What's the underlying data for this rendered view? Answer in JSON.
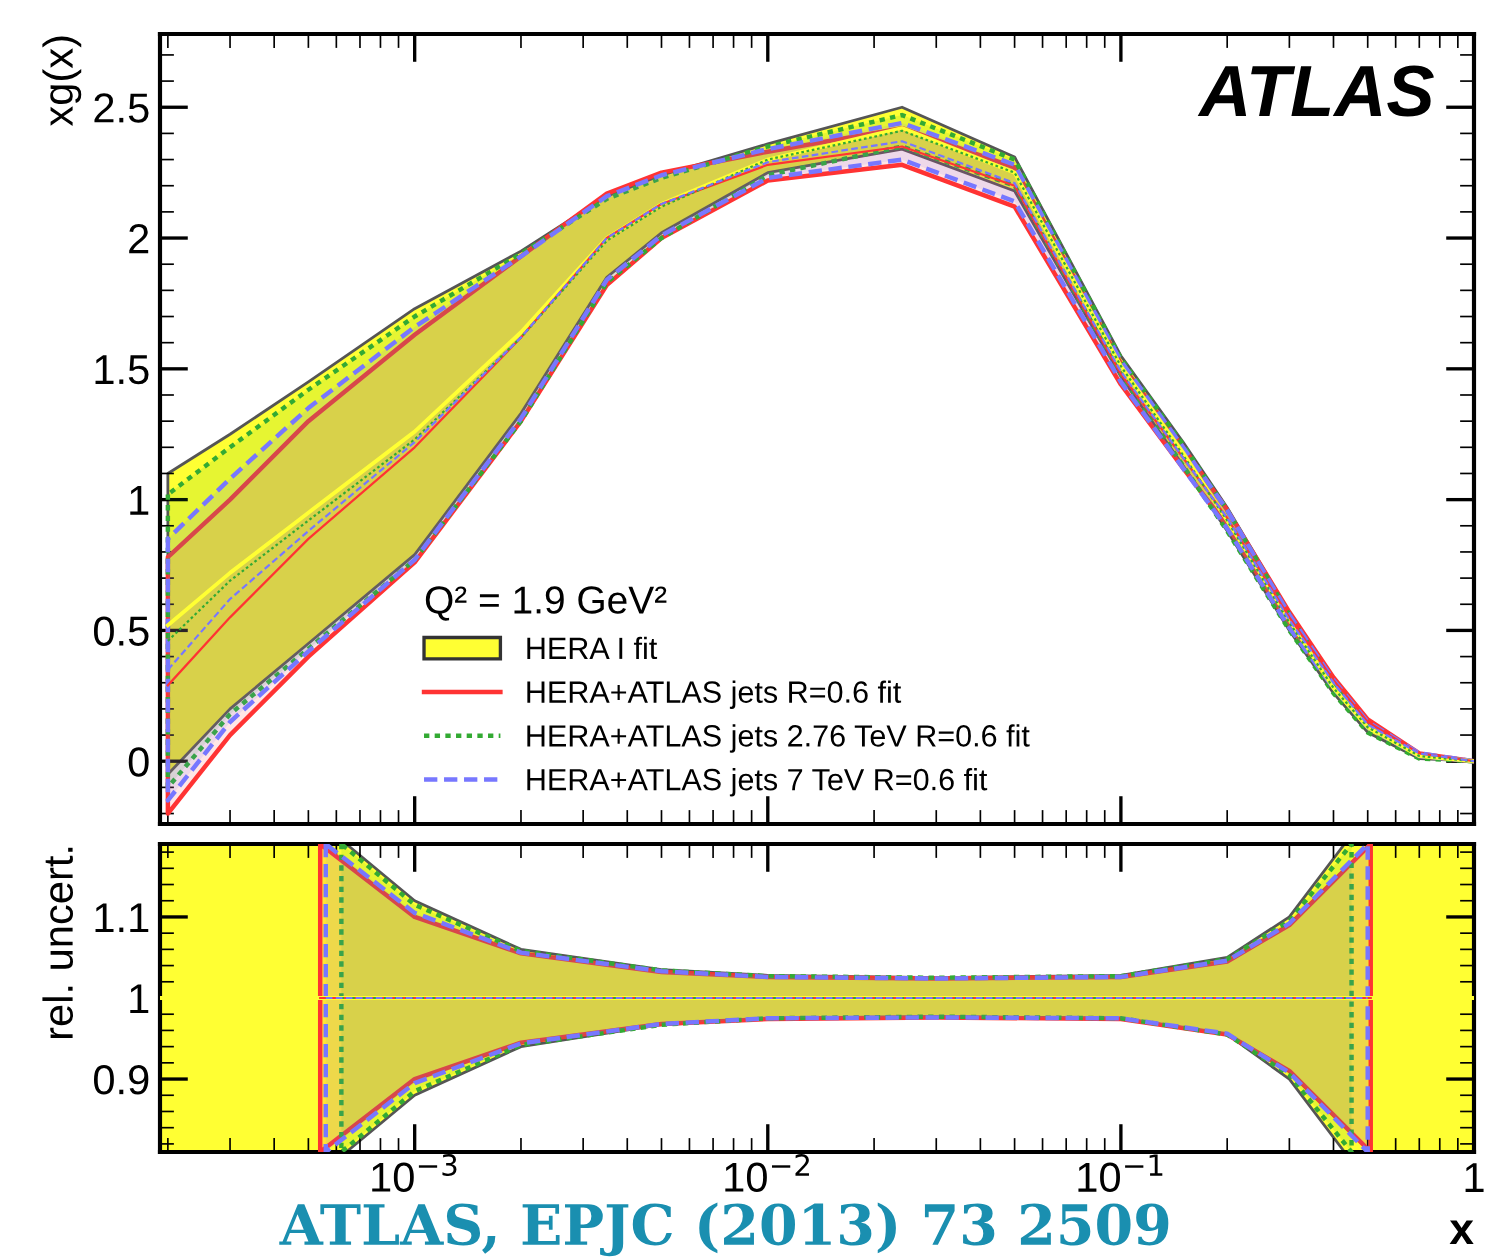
{
  "chart_data": [
    {
      "type": "line",
      "ylabel": "xg(x)",
      "legend_title": "Q² = 1.9 GeV²",
      "legend": "bottom left",
      "tick_labels": "y",
      "log": "x",
      "xlim": [
        0.00019,
        1
      ],
      "ylim": [
        -0.24,
        2.78
      ],
      "yticks": [
        0,
        0.5,
        1,
        1.5,
        2,
        2.5
      ],
      "grid": false,
      "x": [
        0.0002,
        0.0003,
        0.0005,
        0.001,
        0.002,
        0.0035,
        0.005,
        0.01,
        0.024,
        0.05,
        0.1,
        0.15,
        0.2,
        0.3,
        0.4,
        0.5,
        0.7,
        1
      ],
      "annotations": [
        "ATLAS"
      ],
      "series": [
        {
          "name": "HERA I fit",
          "color": "#ffff33",
          "line_style": "solid",
          "values": [
            0.52,
            0.72,
            0.95,
            1.26,
            1.64,
            2.0,
            2.13,
            2.3,
            2.42,
            2.25,
            1.51,
            1.18,
            0.92,
            0.54,
            0.28,
            0.13,
            0.02,
            0
          ],
          "lower": [
            -0.05,
            0.2,
            0.45,
            0.79,
            1.33,
            1.85,
            2.02,
            2.25,
            2.34,
            2.18,
            1.47,
            1.13,
            0.88,
            0.5,
            0.26,
            0.11,
            0.01,
            0
          ],
          "upper": [
            1.1,
            1.25,
            1.45,
            1.73,
            1.95,
            2.16,
            2.24,
            2.36,
            2.5,
            2.31,
            1.55,
            1.22,
            0.97,
            0.57,
            0.31,
            0.15,
            0.03,
            0
          ]
        },
        {
          "name": "HERA+ATLAS jets R=0.6 fit",
          "color": "#ff3333",
          "line_style": "solid",
          "values": [
            0.29,
            0.55,
            0.85,
            1.2,
            1.62,
            2.0,
            2.13,
            2.28,
            2.35,
            2.2,
            1.48,
            1.16,
            0.93,
            0.55,
            0.31,
            0.15,
            0.03,
            0
          ],
          "lower": [
            -0.2,
            0.1,
            0.4,
            0.76,
            1.3,
            1.82,
            2.0,
            2.22,
            2.28,
            2.12,
            1.44,
            1.12,
            0.9,
            0.52,
            0.29,
            0.14,
            0.02,
            0
          ],
          "upper": [
            0.78,
            1.0,
            1.3,
            1.63,
            1.93,
            2.17,
            2.25,
            2.33,
            2.42,
            2.27,
            1.52,
            1.2,
            0.96,
            0.57,
            0.32,
            0.16,
            0.03,
            0
          ]
        },
        {
          "name": "HERA+ATLAS jets 2.76 TeV R=0.6 fit",
          "color": "#33aa33",
          "line_style": "dotted",
          "values": [
            0.46,
            0.69,
            0.92,
            1.23,
            1.62,
            1.99,
            2.12,
            2.3,
            2.41,
            2.25,
            1.51,
            1.17,
            0.92,
            0.53,
            0.28,
            0.13,
            0.02,
            0
          ],
          "lower": [
            -0.1,
            0.18,
            0.43,
            0.77,
            1.3,
            1.83,
            2.0,
            2.24,
            2.35,
            2.2,
            1.48,
            1.13,
            0.88,
            0.5,
            0.26,
            0.11,
            0.01,
            0
          ],
          "upper": [
            1.02,
            1.2,
            1.42,
            1.7,
            1.94,
            2.15,
            2.23,
            2.35,
            2.47,
            2.3,
            1.54,
            1.21,
            0.96,
            0.56,
            0.3,
            0.14,
            0.02,
            0
          ]
        },
        {
          "name": "HERA+ATLAS jets 7 TeV R=0.6 fit",
          "color": "#7777ff",
          "line_style": "dashed",
          "values": [
            0.35,
            0.62,
            0.88,
            1.22,
            1.62,
            2.0,
            2.13,
            2.29,
            2.37,
            2.21,
            1.49,
            1.16,
            0.93,
            0.54,
            0.3,
            0.14,
            0.03,
            0
          ],
          "lower": [
            -0.15,
            0.15,
            0.42,
            0.77,
            1.31,
            1.84,
            2.01,
            2.23,
            2.3,
            2.14,
            1.45,
            1.12,
            0.89,
            0.51,
            0.28,
            0.13,
            0.02,
            0
          ],
          "upper": [
            0.85,
            1.08,
            1.35,
            1.66,
            1.93,
            2.16,
            2.24,
            2.34,
            2.44,
            2.28,
            1.53,
            1.2,
            0.96,
            0.56,
            0.31,
            0.15,
            0.03,
            0
          ]
        }
      ]
    },
    {
      "type": "line",
      "ylabel": "rel. uncert.",
      "xlabel": "x",
      "log": "x",
      "grid": false,
      "xlim": [
        0.00019,
        1
      ],
      "ylim": [
        0.81,
        1.19
      ],
      "yticks": [
        0.9,
        1,
        1.1
      ],
      "xticks": [
        {
          "value": 0.001,
          "label": "10$^{−3}$"
        },
        {
          "value": 0.01,
          "label": "10$^{−2}$"
        },
        {
          "value": 0.1,
          "label": "10$^{−1}$"
        },
        1
      ],
      "annotations": [
        "ATLAS, EPJC (2013) 73 2509"
      ],
      "series": [
        {
          "color": "#ffff33",
          "line_style": "solid",
          "x": [
            0.00019,
            0.00064,
            0.001,
            0.002,
            0.005,
            0.01,
            0.03,
            0.1,
            0.2,
            0.3,
            0.43,
            1
          ],
          "values": [
            1,
            1,
            1,
            1,
            1,
            1,
            1,
            1,
            1,
            1,
            1,
            1
          ],
          "lower": [
            0.81,
            0.81,
            0.88,
            0.94,
            0.967,
            0.975,
            0.977,
            0.975,
            0.955,
            0.9,
            0.81,
            0.81
          ],
          "upper": [
            1.19,
            1.19,
            1.12,
            1.06,
            1.035,
            1.028,
            1.025,
            1.028,
            1.05,
            1.1,
            1.19,
            1.19
          ]
        },
        {
          "color": "#ff3333",
          "line_style": "solid",
          "x": [
            0.00054,
            0.001,
            0.002,
            0.005,
            0.01,
            0.03,
            0.1,
            0.2,
            0.3,
            0.51
          ],
          "values": [
            1,
            1,
            1,
            1,
            1,
            1,
            1,
            1,
            1,
            1
          ],
          "lower": [
            0.81,
            0.9,
            0.945,
            0.968,
            0.974,
            0.976,
            0.974,
            0.955,
            0.91,
            0.81
          ],
          "upper": [
            1.19,
            1.1,
            1.055,
            1.032,
            1.026,
            1.024,
            1.026,
            1.045,
            1.09,
            1.19
          ]
        },
        {
          "color": "#33aa33",
          "line_style": "dotted",
          "x": [
            0.00062,
            0.001,
            0.002,
            0.005,
            0.01,
            0.03,
            0.1,
            0.2,
            0.3,
            0.45
          ],
          "values": [
            1,
            1,
            1,
            1,
            1,
            1,
            1,
            1,
            1,
            1
          ],
          "lower": [
            0.81,
            0.885,
            0.942,
            0.967,
            0.975,
            0.977,
            0.975,
            0.955,
            0.905,
            0.81
          ],
          "upper": [
            1.19,
            1.115,
            1.058,
            1.034,
            1.027,
            1.025,
            1.027,
            1.048,
            1.095,
            1.19
          ]
        },
        {
          "color": "#7777ff",
          "line_style": "dashed",
          "x": [
            0.00056,
            0.001,
            0.002,
            0.005,
            0.01,
            0.03,
            0.1,
            0.2,
            0.3,
            0.5
          ],
          "values": [
            1,
            1,
            1,
            1,
            1,
            1,
            1,
            1,
            1,
            1
          ],
          "lower": [
            0.81,
            0.895,
            0.944,
            0.968,
            0.975,
            0.976,
            0.975,
            0.956,
            0.908,
            0.81
          ],
          "upper": [
            1.19,
            1.105,
            1.056,
            1.033,
            1.026,
            1.024,
            1.026,
            1.046,
            1.092,
            1.19
          ]
        }
      ]
    }
  ]
}
